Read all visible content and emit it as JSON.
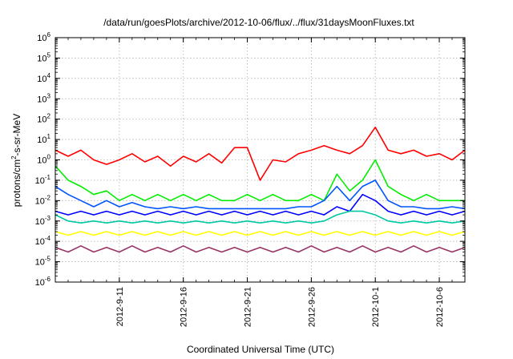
{
  "chart_data": {
    "type": "line",
    "title": "/data/run/goesPlots/archive/2012-10-06/flux/../flux/31daysMoonFluxes.txt",
    "xlabel": "Coordinated Universal Time (UTC)",
    "ylabel": {
      "pre": "protons/cm",
      "sup": "2",
      "post": "-s-sr-MeV"
    },
    "y_scale": "log",
    "ylim": [
      1e-06,
      1000000.0
    ],
    "y_tick_exponents": [
      -6,
      -5,
      -4,
      -3,
      -2,
      -1,
      0,
      1,
      2,
      3,
      4,
      5,
      6
    ],
    "y_tick_base": "10",
    "xlim": [
      "2012-09-06",
      "2012-10-08"
    ],
    "x_ticks": [
      "2012-9-11",
      "2012-9-16",
      "2012-9-21",
      "2012-9-26",
      "2012-10-1",
      "2012-10-6"
    ],
    "x_tick_dates": [
      "2012-09-11",
      "2012-09-16",
      "2012-09-21",
      "2012-09-26",
      "2012-10-01",
      "2012-10-06"
    ],
    "grid": true,
    "legend": "none",
    "x": [
      "2012-09-06",
      "2012-09-07",
      "2012-09-08",
      "2012-09-09",
      "2012-09-10",
      "2012-09-11",
      "2012-09-12",
      "2012-09-13",
      "2012-09-14",
      "2012-09-15",
      "2012-09-16",
      "2012-09-17",
      "2012-09-18",
      "2012-09-19",
      "2012-09-20",
      "2012-09-21",
      "2012-09-22",
      "2012-09-23",
      "2012-09-24",
      "2012-09-25",
      "2012-09-26",
      "2012-09-27",
      "2012-09-28",
      "2012-09-29",
      "2012-09-30",
      "2012-10-01",
      "2012-10-02",
      "2012-10-03",
      "2012-10-04",
      "2012-10-05",
      "2012-10-06",
      "2012-10-07",
      "2012-10-08"
    ],
    "series": [
      {
        "color": "#ff0000",
        "values": [
          3,
          1.5,
          3,
          1,
          0.6,
          1,
          2,
          0.8,
          1.5,
          0.5,
          1.5,
          0.8,
          2,
          0.7,
          4,
          4,
          0.1,
          1,
          0.8,
          2,
          3,
          5,
          3,
          2,
          5,
          40,
          3,
          2,
          3,
          1.5,
          2,
          1,
          3
        ]
      },
      {
        "color": "#00ee00",
        "values": [
          0.5,
          0.1,
          0.05,
          0.02,
          0.03,
          0.01,
          0.02,
          0.01,
          0.02,
          0.01,
          0.02,
          0.01,
          0.02,
          0.01,
          0.01,
          0.02,
          0.01,
          0.02,
          0.01,
          0.01,
          0.02,
          0.01,
          0.2,
          0.03,
          0.1,
          1,
          0.05,
          0.02,
          0.01,
          0.02,
          0.01,
          0.01,
          0.01
        ]
      },
      {
        "color": "#0055ff",
        "values": [
          0.05,
          0.02,
          0.01,
          0.005,
          0.01,
          0.005,
          0.008,
          0.005,
          0.004,
          0.005,
          0.004,
          0.005,
          0.004,
          0.004,
          0.004,
          0.004,
          0.004,
          0.004,
          0.004,
          0.005,
          0.005,
          0.01,
          0.05,
          0.01,
          0.05,
          0.1,
          0.01,
          0.005,
          0.005,
          0.004,
          0.004,
          0.005,
          0.004
        ]
      },
      {
        "color": "#0000ff",
        "values": [
          0.003,
          0.002,
          0.003,
          0.002,
          0.003,
          0.002,
          0.003,
          0.002,
          0.003,
          0.002,
          0.003,
          0.002,
          0.003,
          0.002,
          0.003,
          0.002,
          0.003,
          0.002,
          0.003,
          0.002,
          0.003,
          0.002,
          0.005,
          0.003,
          0.02,
          0.01,
          0.003,
          0.002,
          0.003,
          0.002,
          0.003,
          0.002,
          0.003
        ]
      },
      {
        "color": "#00c8a0",
        "values": [
          0.002,
          0.001,
          0.0008,
          0.001,
          0.0008,
          0.001,
          0.0008,
          0.001,
          0.0008,
          0.001,
          0.0008,
          0.001,
          0.0008,
          0.001,
          0.0008,
          0.001,
          0.0008,
          0.001,
          0.0008,
          0.001,
          0.0008,
          0.001,
          0.002,
          0.003,
          0.003,
          0.002,
          0.001,
          0.0008,
          0.001,
          0.0008,
          0.001,
          0.0008,
          0.001
        ]
      },
      {
        "color": "#ffff00",
        "values": [
          0.0003,
          0.0002,
          0.0003,
          0.0002,
          0.0003,
          0.0002,
          0.0003,
          0.0002,
          0.0003,
          0.0002,
          0.0003,
          0.0002,
          0.0003,
          0.0002,
          0.0003,
          0.0002,
          0.0003,
          0.0002,
          0.0003,
          0.0002,
          0.0003,
          0.0002,
          0.0003,
          0.0002,
          0.0003,
          0.0002,
          0.0003,
          0.0002,
          0.0003,
          0.0002,
          0.0003,
          0.0002,
          0.0003
        ]
      },
      {
        "color": "#993366",
        "values": [
          5e-05,
          3e-05,
          6e-05,
          3e-05,
          5e-05,
          3e-05,
          6e-05,
          3e-05,
          5e-05,
          3e-05,
          6e-05,
          3e-05,
          5e-05,
          3e-05,
          5e-05,
          3e-05,
          5e-05,
          3e-05,
          5e-05,
          3e-05,
          6e-05,
          3e-05,
          5e-05,
          3e-05,
          6e-05,
          3e-05,
          5e-05,
          3e-05,
          6e-05,
          3e-05,
          5e-05,
          3e-05,
          5e-05
        ]
      }
    ]
  }
}
